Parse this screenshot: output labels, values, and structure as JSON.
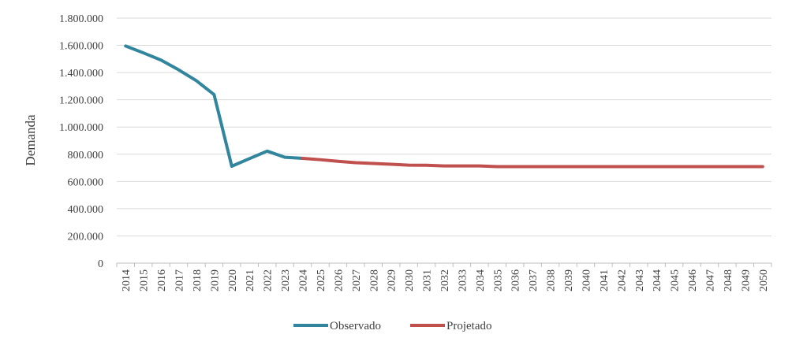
{
  "chart_data": {
    "type": "line",
    "title": "",
    "xlabel": "",
    "ylabel": "Demanda",
    "ylim": [
      0,
      1800000
    ],
    "yticks": [
      0,
      200000,
      400000,
      600000,
      800000,
      1000000,
      1200000,
      1400000,
      1600000,
      1800000
    ],
    "ytick_labels": [
      "0",
      "200.000",
      "400.000",
      "600.000",
      "800.000",
      "1.000.000",
      "1.200.000",
      "1.400.000",
      "1.600.000",
      "1.800.000"
    ],
    "grid": "horizontal",
    "legend_position": "bottom",
    "categories": [
      "2014",
      "2015",
      "2016",
      "2017",
      "2018",
      "2019",
      "2020",
      "2021",
      "2022",
      "2023",
      "2024",
      "2025",
      "2026",
      "2027",
      "2028",
      "2029",
      "2030",
      "2031",
      "2032",
      "2033",
      "2034",
      "2035",
      "2036",
      "2037",
      "2038",
      "2039",
      "2040",
      "2041",
      "2042",
      "2043",
      "2044",
      "2045",
      "2046",
      "2047",
      "2048",
      "2049",
      "2050"
    ],
    "series": [
      {
        "name": "Observado",
        "color": "#31859C",
        "x": [
          "2014",
          "2015",
          "2016",
          "2017",
          "2018",
          "2019",
          "2020",
          "2021",
          "2022",
          "2023",
          "2024"
        ],
        "values": [
          1595000,
          1545000,
          1492000,
          1420000,
          1340000,
          1238000,
          712000,
          768000,
          823000,
          778000,
          770000
        ]
      },
      {
        "name": "Projetado",
        "color": "#C0504D",
        "x": [
          "2024",
          "2025",
          "2026",
          "2027",
          "2028",
          "2029",
          "2030",
          "2031",
          "2032",
          "2033",
          "2034",
          "2035",
          "2036",
          "2037",
          "2038",
          "2039",
          "2040",
          "2041",
          "2042",
          "2043",
          "2044",
          "2045",
          "2046",
          "2047",
          "2048",
          "2049",
          "2050"
        ],
        "values": [
          770000,
          760000,
          748000,
          738000,
          732000,
          726000,
          720000,
          719000,
          714000,
          714000,
          714000,
          709000,
          709000,
          709000,
          709000,
          709000,
          709000,
          709000,
          709000,
          709000,
          709000,
          709000,
          709000,
          709000,
          709000,
          709000,
          709000
        ]
      }
    ]
  }
}
